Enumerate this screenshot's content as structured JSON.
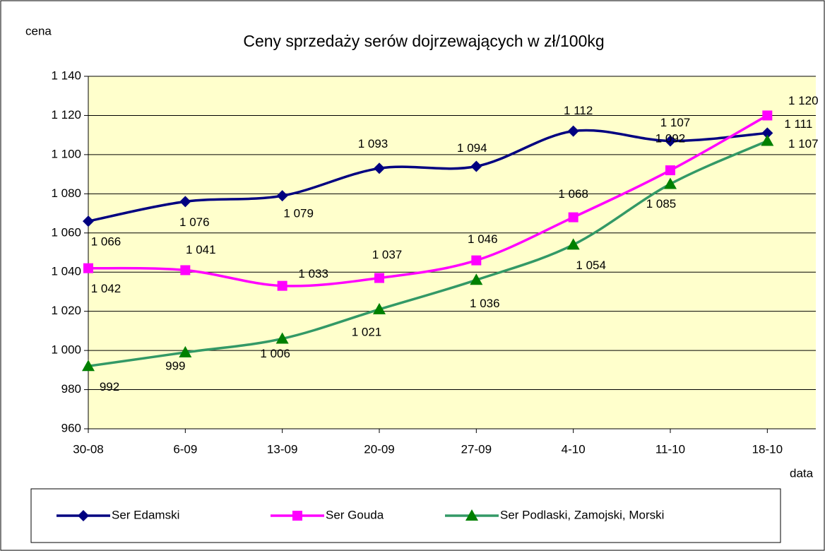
{
  "chart_data": {
    "type": "line",
    "title": "Ceny sprzedaży serów dojrzewających w zł/100kg",
    "y_label": "cena",
    "x_label": "data",
    "categories": [
      "30-08",
      "6-09",
      "13-09",
      "20-09",
      "27-09",
      "4-10",
      "11-10",
      "18-10"
    ],
    "series": [
      {
        "name": "Ser Edamski",
        "color": "#000080",
        "marker": "diamond",
        "values": [
          1066,
          1076,
          1079,
          1093,
          1094,
          1112,
          1107,
          1111
        ],
        "value_labels": [
          "1 066",
          "1 076",
          "1 079",
          "1 093",
          "1 094",
          "1 112",
          "1 107",
          "1 111"
        ]
      },
      {
        "name": "Ser Gouda",
        "color": "#ff00ff",
        "marker": "square",
        "values": [
          1042,
          1041,
          1033,
          1037,
          1046,
          1068,
          1092,
          1120
        ],
        "value_labels": [
          "1 042",
          "1 041",
          "1 033",
          "1 037",
          "1 046",
          "1 068",
          "1 092",
          "1 120"
        ]
      },
      {
        "name": "Ser Podlaski, Zamojski, Morski",
        "color": "#339966",
        "marker_color": "#008000",
        "marker": "triangle",
        "values": [
          992,
          999,
          1006,
          1021,
          1036,
          1054,
          1085,
          1107
        ],
        "value_labels": [
          "992",
          "999",
          "1 006",
          "1 021",
          "1 036",
          "1 054",
          "1 085",
          "1 107"
        ]
      }
    ],
    "ylim": [
      960,
      1140
    ],
    "yticks": [
      {
        "value": 960,
        "label": "960"
      },
      {
        "value": 980,
        "label": "980"
      },
      {
        "value": 1000,
        "label": "1 000"
      },
      {
        "value": 1020,
        "label": "1 020"
      },
      {
        "value": 1040,
        "label": "1 040"
      },
      {
        "value": 1060,
        "label": "1 060"
      },
      {
        "value": 1080,
        "label": "1 080"
      },
      {
        "value": 1100,
        "label": "1 100"
      },
      {
        "value": 1120,
        "label": "1 120"
      },
      {
        "value": 1140,
        "label": "1 140"
      }
    ],
    "grid": true,
    "legend": "bottom",
    "plot_background": "#ffffcc"
  }
}
